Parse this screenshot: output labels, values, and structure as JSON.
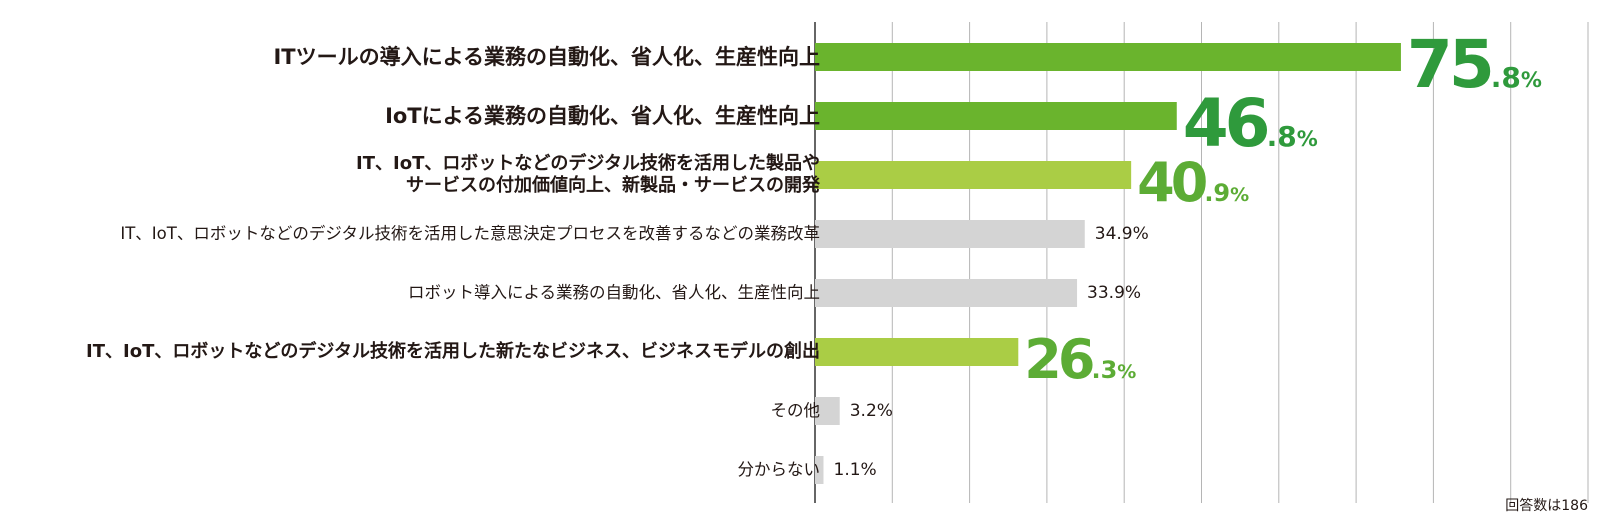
{
  "chart_data": {
    "type": "bar",
    "orientation": "horizontal",
    "xlim": [
      0,
      100
    ],
    "grid": true,
    "categories": [
      "ITツールの導入による業務の自動化、省人化、生産性向上",
      "IoTによる業務の自動化、省人化、生産性向上",
      "IT、IoT、ロボットなどのデジタル技術を活用した製品や\nサービスの付加価値向上、新製品・サービスの開発",
      "IT、IoT、ロボットなどのデジタル技術を活用した意思決定プロセスを改善するなどの業務改革",
      "ロボット導入による業務の自動化、省人化、生産性向上",
      "IT、IoT、ロボットなどのデジタル技術を活用した新たなビジネス、ビジネスモデルの創出",
      "その他",
      "分からない"
    ],
    "values": [
      75.8,
      46.8,
      40.9,
      34.9,
      33.9,
      26.3,
      3.2,
      1.1
    ],
    "value_labels": [
      "75.8%",
      "46.8%",
      "40.9%",
      "34.9%",
      "33.9%",
      "26.3%",
      "3.2%",
      "1.1%"
    ],
    "emphasis": [
      "dark",
      "dark",
      "light",
      "none",
      "none",
      "light",
      "none",
      "none"
    ],
    "colors": {
      "dark": "#6ab42d",
      "light": "#aacd45",
      "none": "#d4d4d4",
      "dark_text": "#2f9a3c",
      "light_text": "#5cac35",
      "grid": "#b5b5b5",
      "axis": "#333333"
    }
  },
  "note": "回答数は186"
}
